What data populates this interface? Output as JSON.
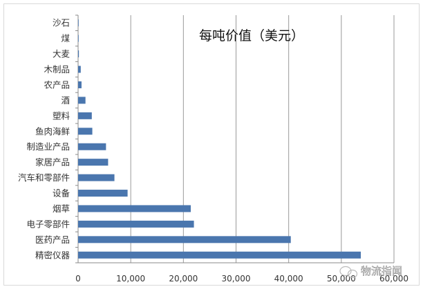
{
  "chart_data": {
    "type": "bar",
    "orientation": "horizontal",
    "title": "每吨价值（美元）",
    "categories": [
      "沙石",
      "煤",
      "大麦",
      "木制品",
      "农产品",
      "酒",
      "塑料",
      "鱼肉海鲜",
      "制造业产品",
      "家居产品",
      "汽车和零部件",
      "设备",
      "烟草",
      "电子零部件",
      "医药产品",
      "精密仪器"
    ],
    "values": [
      20,
      50,
      150,
      500,
      650,
      1400,
      2600,
      2700,
      5300,
      5700,
      6900,
      9400,
      21400,
      22000,
      40400,
      53700
    ],
    "xlim": [
      0,
      60000
    ],
    "xticks": [
      "0",
      "10,000",
      "20,000",
      "30,000",
      "40,000",
      "50,000",
      "60,000"
    ],
    "xlabel": "",
    "ylabel": "",
    "grid": "vertical",
    "legend": "none",
    "bar_color": "#4a76ae"
  },
  "watermark": {
    "text": "物流指闻",
    "icon": "wechat-icon"
  }
}
